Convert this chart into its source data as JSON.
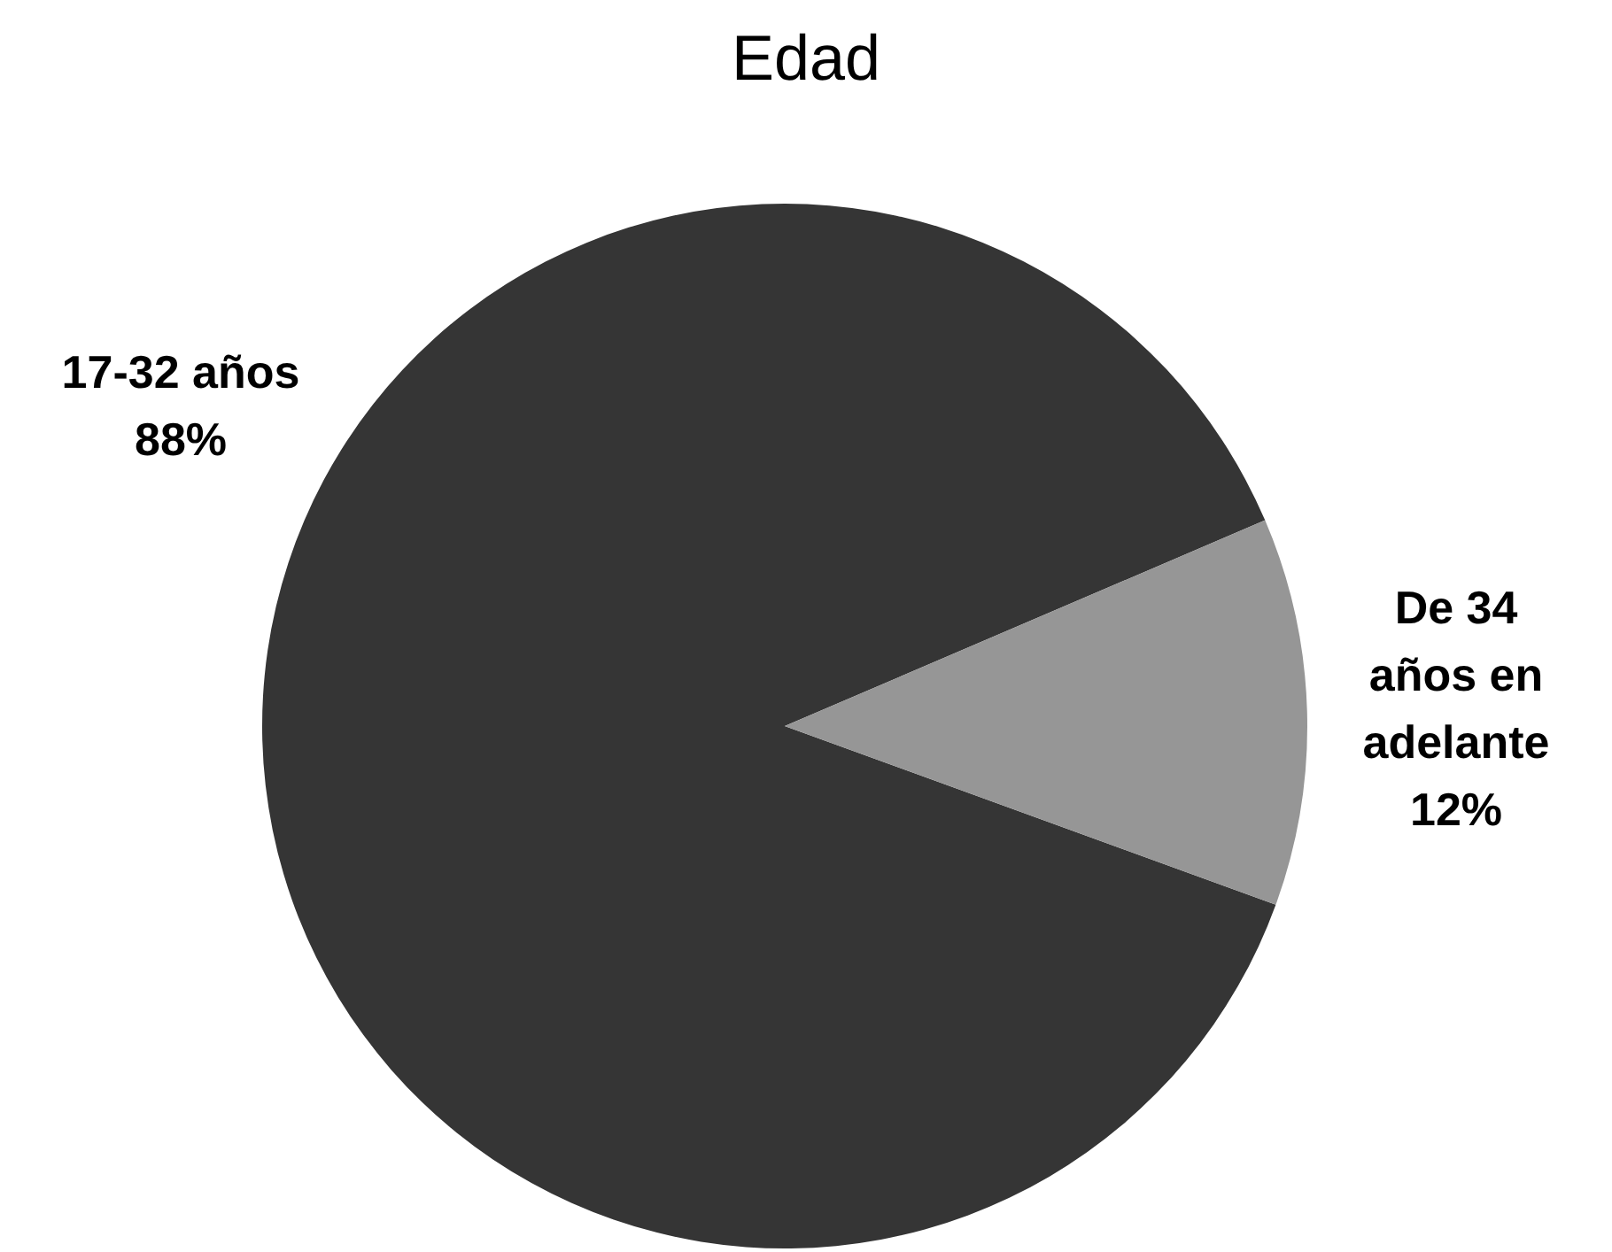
{
  "chart_data": {
    "type": "pie",
    "title": "Edad",
    "categories": [
      "17-32 años",
      "De 34 años en adelante"
    ],
    "values": [
      88,
      12
    ],
    "colors": [
      "#353535",
      "#969696"
    ],
    "value_labels": [
      "88%",
      "12%"
    ]
  }
}
